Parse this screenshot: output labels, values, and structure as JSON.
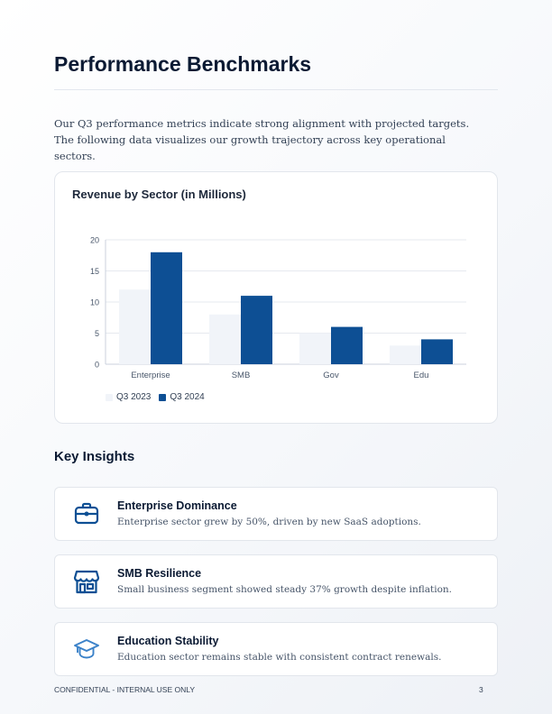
{
  "page": {
    "title": "Performance Benchmarks",
    "intro": "Our Q3 performance metrics indicate strong alignment with projected targets. The following data visualizes our growth trajectory across key operational sectors."
  },
  "chart_data": {
    "type": "bar",
    "title": "Revenue by Sector (in Millions)",
    "categories": [
      "Enterprise",
      "SMB",
      "Gov",
      "Edu"
    ],
    "series": [
      {
        "name": "Q3 2023",
        "values": [
          12,
          8,
          5,
          3
        ],
        "color": "#f1f4f9"
      },
      {
        "name": "Q3 2024",
        "values": [
          18,
          11,
          6,
          4
        ],
        "color": "#0d4f94"
      }
    ],
    "yticks": [
      "0",
      "5",
      "10",
      "15",
      "20"
    ],
    "ylim": [
      0,
      20
    ],
    "grid": true,
    "legend_position": "bottom-left"
  },
  "insights": {
    "title": "Key Insights",
    "items": [
      {
        "icon": "briefcase-icon",
        "title": "Enterprise Dominance",
        "desc": "Enterprise sector grew by 50%, driven by new SaaS adoptions."
      },
      {
        "icon": "storefront-icon",
        "title": "SMB Resilience",
        "desc": "Small business segment showed steady 37% growth despite inflation."
      },
      {
        "icon": "graduation-cap-icon",
        "title": "Education Stability",
        "desc": "Education sector remains stable with consistent contract renewals."
      }
    ]
  },
  "footer": {
    "label": "CONFIDENTIAL - INTERNAL USE ONLY",
    "page_number": "3"
  },
  "colors": {
    "accent": "#0d4f94",
    "text": "#0b1a33"
  }
}
